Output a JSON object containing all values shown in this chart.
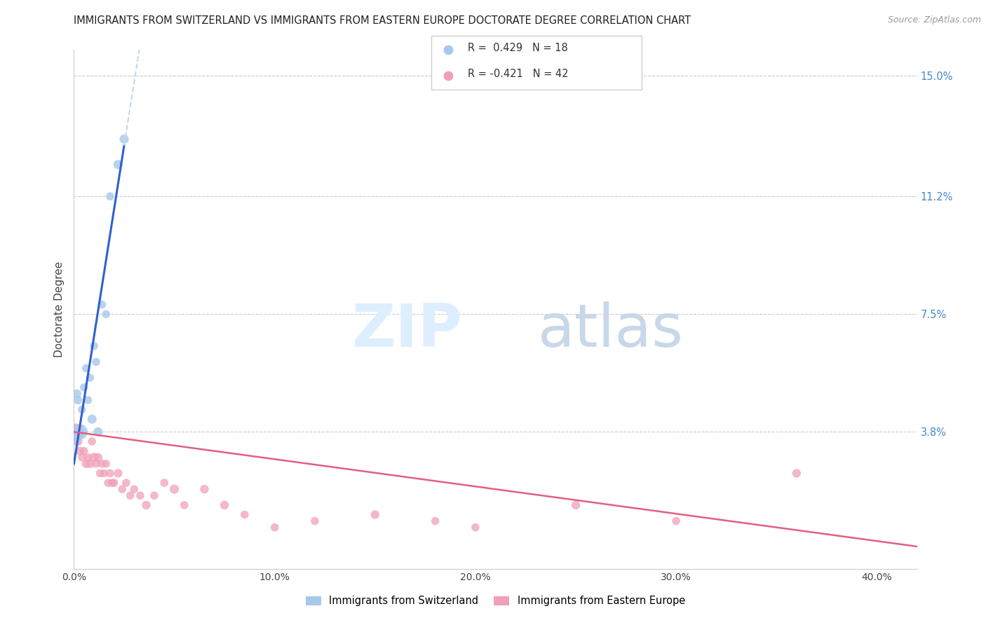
{
  "title": "IMMIGRANTS FROM SWITZERLAND VS IMMIGRANTS FROM EASTERN EUROPE DOCTORATE DEGREE CORRELATION CHART",
  "source": "Source: ZipAtlas.com",
  "ylabel": "Doctorate Degree",
  "right_yticklabels": [
    "3.8%",
    "7.5%",
    "11.2%",
    "15.0%"
  ],
  "right_ytick_vals": [
    0.038,
    0.075,
    0.112,
    0.15
  ],
  "watermark_zip": "ZIP",
  "watermark_atlas": "atlas",
  "legend1_text": "R =  0.429   N = 18",
  "legend2_text": "R = -0.421   N = 42",
  "blue_color": "#a8c8ea",
  "pink_color": "#f0a0b8",
  "blue_line_color": "#3060d0",
  "pink_line_color": "#e06080",
  "blue_dashed_color": "#c0d8f0",
  "swiss_x": [
    0.001,
    0.0015,
    0.002,
    0.003,
    0.004,
    0.005,
    0.006,
    0.007,
    0.008,
    0.009,
    0.01,
    0.011,
    0.012,
    0.014,
    0.016,
    0.018,
    0.022,
    0.025
  ],
  "swiss_y": [
    0.035,
    0.05,
    0.048,
    0.038,
    0.045,
    0.052,
    0.058,
    0.048,
    0.055,
    0.042,
    0.065,
    0.06,
    0.038,
    0.078,
    0.075,
    0.112,
    0.122,
    0.13
  ],
  "swiss_sizes": [
    70,
    80,
    80,
    250,
    70,
    70,
    70,
    70,
    70,
    90,
    70,
    70,
    90,
    70,
    70,
    70,
    90,
    90
  ],
  "eastern_x": [
    0.001,
    0.002,
    0.003,
    0.004,
    0.005,
    0.006,
    0.007,
    0.008,
    0.009,
    0.01,
    0.011,
    0.012,
    0.013,
    0.014,
    0.015,
    0.016,
    0.017,
    0.018,
    0.019,
    0.02,
    0.022,
    0.024,
    0.026,
    0.028,
    0.03,
    0.033,
    0.036,
    0.04,
    0.045,
    0.05,
    0.055,
    0.065,
    0.075,
    0.085,
    0.1,
    0.12,
    0.15,
    0.18,
    0.2,
    0.25,
    0.3,
    0.36
  ],
  "eastern_y": [
    0.038,
    0.035,
    0.032,
    0.03,
    0.032,
    0.028,
    0.03,
    0.028,
    0.035,
    0.03,
    0.028,
    0.03,
    0.025,
    0.028,
    0.025,
    0.028,
    0.022,
    0.025,
    0.022,
    0.022,
    0.025,
    0.02,
    0.022,
    0.018,
    0.02,
    0.018,
    0.015,
    0.018,
    0.022,
    0.02,
    0.015,
    0.02,
    0.015,
    0.012,
    0.008,
    0.01,
    0.012,
    0.01,
    0.008,
    0.015,
    0.01,
    0.025
  ],
  "eastern_sizes": [
    300,
    80,
    80,
    70,
    70,
    80,
    70,
    80,
    70,
    90,
    70,
    80,
    70,
    70,
    70,
    70,
    70,
    70,
    70,
    70,
    80,
    70,
    70,
    70,
    70,
    70,
    80,
    70,
    70,
    90,
    70,
    80,
    80,
    70,
    70,
    70,
    80,
    70,
    70,
    80,
    70,
    80
  ],
  "xlim": [
    0,
    0.42
  ],
  "ylim": [
    -0.005,
    0.158
  ],
  "xtick_vals": [
    0.0,
    0.1,
    0.2,
    0.3,
    0.4
  ],
  "xtick_labels": [
    "0.0%",
    "10.0%",
    "20.0%",
    "30.0%",
    "40.0%"
  ]
}
